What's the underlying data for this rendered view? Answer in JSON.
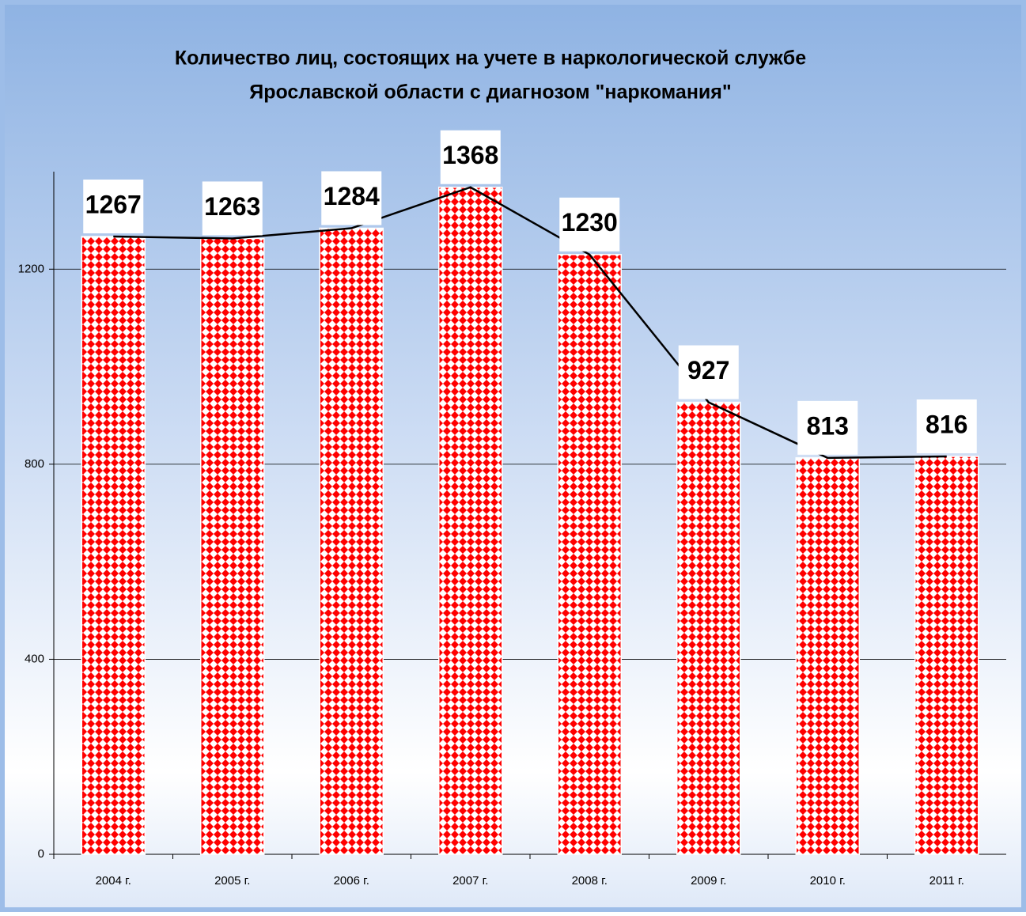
{
  "chart_data": {
    "type": "bar",
    "title": [
      "Количество лиц, состоящих на учете в наркологической службе",
      "Ярославской области с диагнозом \"наркомания\""
    ],
    "categories": [
      "2004 г.",
      "2005 г.",
      "2006 г.",
      "2007 г.",
      "2008 г.",
      "2009 г.",
      "2010 г.",
      "2011 г."
    ],
    "values": [
      1267,
      1263,
      1284,
      1368,
      1230,
      927,
      813,
      816
    ],
    "color": "#ff0000",
    "line_color": "#000000",
    "line": true,
    "ylim": [
      0,
      1400
    ],
    "yticks": [
      0,
      400,
      800,
      1200
    ],
    "grid": true
  }
}
